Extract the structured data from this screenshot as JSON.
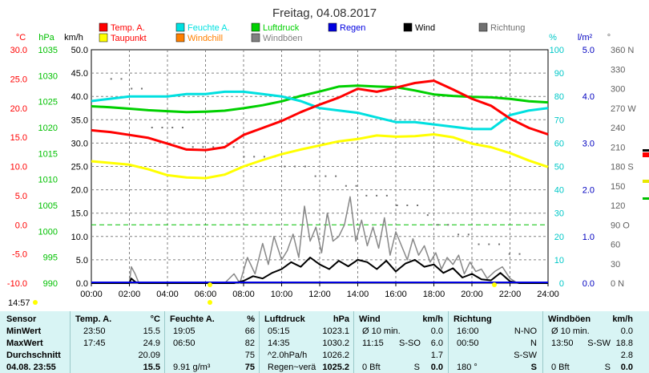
{
  "chart_data": {
    "type": "line",
    "title": "Freitag, 04.08.2017",
    "x_ticks": [
      "00:00",
      "02:00",
      "04:00",
      "06:00",
      "08:00",
      "10:00",
      "12:00",
      "14:00",
      "16:00",
      "18:00",
      "20:00",
      "22:00",
      "24:00"
    ],
    "xlim": [
      0,
      24
    ],
    "grid": true,
    "legend_position": "top",
    "axes": [
      {
        "unit": "°C",
        "color": "#ff0000",
        "ticks": [
          "30.0",
          "25.0",
          "20.0",
          "15.0",
          "10.0",
          "5.0",
          "0.0",
          "-5.0",
          "-10.0"
        ]
      },
      {
        "unit": "hPa",
        "color": "#00c000",
        "ticks": [
          "1035",
          "1030",
          "1025",
          "1020",
          "1015",
          "1010",
          "1005",
          "1000",
          "995",
          "990"
        ]
      },
      {
        "unit": "km/h",
        "color": "#000000",
        "ticks": [
          "50.0",
          "45.0",
          "40.0",
          "35.0",
          "30.0",
          "25.0",
          "20.0",
          "15.0",
          "10.0",
          "5.0",
          "0.0"
        ]
      },
      {
        "unit": "%",
        "color": "#00c8c8",
        "ticks": [
          "100",
          "90",
          "80",
          "70",
          "60",
          "50",
          "40",
          "30",
          "20",
          "10",
          "0"
        ]
      },
      {
        "unit": "l/m²",
        "color": "#0000c0",
        "ticks": [
          "5.0",
          "4.0",
          "3.0",
          "2.0",
          "1.0",
          "0.0"
        ]
      },
      {
        "unit": "°",
        "color": "#606060",
        "ticks": [
          "360 N",
          "330",
          "300",
          "270 W",
          "240",
          "210",
          "180 S",
          "150",
          "120",
          "90 O",
          "60",
          "30",
          "0 N"
        ]
      }
    ],
    "legend": [
      {
        "label": "Temp. A.",
        "color": "#ff0000"
      },
      {
        "label": "Feuchte A.",
        "color": "#00e0e0"
      },
      {
        "label": "Luftdruck",
        "color": "#00d000"
      },
      {
        "label": "Regen",
        "color": "#0000e0"
      },
      {
        "label": "Wind",
        "color": "#000000"
      },
      {
        "label": "Richtung",
        "color": "#707070"
      },
      {
        "label": "Taupunkt",
        "color": "#ffff00"
      },
      {
        "label": "Windchill",
        "color": "#ff8000"
      },
      {
        "label": "Windböen",
        "color": "#808080"
      }
    ],
    "series": [
      {
        "name": "Temp. A.",
        "axis": "°C",
        "color": "#ff0000",
        "width": 3,
        "x": [
          0,
          1,
          2,
          3,
          4,
          5,
          6,
          7,
          8,
          9,
          10,
          11,
          12,
          13,
          14,
          15,
          16,
          17,
          18,
          19,
          20,
          21,
          22,
          23,
          24
        ],
        "y": [
          16.2,
          15.9,
          15.4,
          14.9,
          13.9,
          12.9,
          12.8,
          13.3,
          15.4,
          16.6,
          17.8,
          19.3,
          20.6,
          21.8,
          23.3,
          22.8,
          23.5,
          24.3,
          24.7,
          23.2,
          21.6,
          20.4,
          18.2,
          16.6,
          15.5
        ]
      },
      {
        "name": "Feuchte A.",
        "axis": "%",
        "color": "#00e0e0",
        "width": 3,
        "x": [
          0,
          1,
          2,
          3,
          4,
          5,
          6,
          7,
          8,
          9,
          10,
          11,
          12,
          13,
          14,
          15,
          16,
          17,
          18,
          19,
          20,
          21,
          22,
          23,
          24
        ],
        "y": [
          78,
          79,
          80,
          80,
          80,
          81,
          81,
          82,
          82,
          81,
          80,
          78,
          75,
          74,
          73,
          71,
          69,
          69,
          68,
          67,
          66,
          66,
          72,
          74,
          75
        ]
      },
      {
        "name": "Luftdruck",
        "axis": "hPa",
        "color": "#00d000",
        "width": 3,
        "x": [
          0,
          1,
          2,
          3,
          4,
          5,
          6,
          7,
          8,
          9,
          10,
          11,
          12,
          13,
          14,
          15,
          16,
          17,
          18,
          19,
          20,
          21,
          22,
          23,
          24
        ],
        "y": [
          1026.0,
          1025.8,
          1025.5,
          1025.2,
          1025.0,
          1024.8,
          1024.9,
          1025.1,
          1025.6,
          1026.2,
          1027.0,
          1028.1,
          1029.0,
          1030.0,
          1030.2,
          1030.0,
          1029.9,
          1029.2,
          1028.4,
          1028.1,
          1027.9,
          1027.8,
          1027.5,
          1027.0,
          1026.8
        ]
      },
      {
        "name": "Taupunkt",
        "axis": "°C",
        "color": "#ffff00",
        "width": 3,
        "x": [
          0,
          1,
          2,
          3,
          4,
          5,
          6,
          7,
          8,
          9,
          10,
          11,
          12,
          13,
          14,
          15,
          16,
          17,
          18,
          19,
          20,
          21,
          22,
          23,
          24
        ],
        "y": [
          10.9,
          10.6,
          10.3,
          9.5,
          8.5,
          8.1,
          8.0,
          8.6,
          10.0,
          11.1,
          12.1,
          12.9,
          13.6,
          14.3,
          14.7,
          15.3,
          15.1,
          15.2,
          15.5,
          15.0,
          13.9,
          13.3,
          12.3,
          11.0,
          9.9
        ]
      },
      {
        "name": "Wind",
        "axis": "km/h",
        "color": "#000000",
        "width": 2,
        "x": [
          0,
          1,
          2,
          2.1,
          2.3,
          2.5,
          3,
          4,
          5,
          6,
          7,
          7.5,
          8,
          8.5,
          9,
          9.5,
          10,
          10.5,
          11,
          11.5,
          12,
          12.5,
          13,
          13.5,
          14,
          14.5,
          15,
          15.5,
          16,
          16.5,
          17,
          17.5,
          18,
          18.5,
          19,
          19.5,
          20,
          20.5,
          21,
          21.5,
          22,
          22.5,
          23,
          24
        ],
        "y": [
          0,
          0,
          0,
          1.0,
          0.3,
          0,
          0,
          0,
          0,
          0,
          0,
          0,
          0.5,
          1.5,
          1.0,
          2.2,
          3.0,
          4.5,
          3.5,
          5.5,
          4.0,
          3.0,
          4.8,
          3.6,
          5.0,
          4.5,
          3.0,
          4.8,
          2.5,
          4.2,
          5.0,
          3.5,
          4.0,
          2.2,
          3.2,
          1.2,
          2.0,
          0.8,
          0.6,
          2.2,
          0.4,
          0,
          0,
          0
        ]
      },
      {
        "name": "Windböen",
        "axis": "km/h",
        "color": "#888888",
        "width": 1.5,
        "x": [
          0,
          1,
          2,
          2.1,
          2.3,
          2.5,
          3,
          4,
          5,
          6,
          7,
          7.5,
          7.8,
          8.2,
          8.6,
          9,
          9.3,
          9.6,
          10,
          10.3,
          10.6,
          10.9,
          11.2,
          11.5,
          11.8,
          12.1,
          12.4,
          12.7,
          13,
          13.3,
          13.6,
          13.9,
          14.2,
          14.5,
          14.8,
          15.1,
          15.4,
          15.7,
          16,
          16.3,
          16.6,
          16.9,
          17.2,
          17.5,
          17.8,
          18.1,
          18.4,
          18.7,
          19,
          19.3,
          19.6,
          19.9,
          20.2,
          20.5,
          20.8,
          21.2,
          21.6,
          22,
          22.4,
          23,
          24
        ],
        "y": [
          0,
          0,
          0,
          3.5,
          2.0,
          0,
          0,
          0,
          0,
          0,
          0,
          2.0,
          0,
          5.5,
          2.0,
          8.5,
          4.0,
          10.0,
          5.0,
          7.0,
          10.5,
          5.5,
          16.5,
          9.0,
          12.0,
          6.5,
          15.0,
          9.0,
          10.0,
          12.5,
          18.5,
          9.0,
          13.5,
          8.0,
          12.0,
          7.5,
          14.0,
          6.0,
          11.0,
          8.0,
          5.0,
          9.5,
          6.0,
          8.0,
          4.5,
          6.5,
          3.0,
          5.5,
          4.0,
          6.0,
          2.0,
          4.5,
          2.5,
          3.0,
          1.0,
          2.5,
          3.5,
          1.0,
          0,
          0,
          0
        ]
      }
    ],
    "richtung_points": {
      "axis": "°",
      "color": "#707070",
      "y": [
        315,
        315,
        300,
        300,
        240,
        240,
        240,
        240,
        210,
        210,
        210,
        210,
        210,
        195,
        195,
        195,
        195,
        180,
        180,
        180,
        165,
        165,
        165,
        150,
        150,
        135,
        135,
        135,
        120,
        120,
        120,
        105,
        90,
        90,
        75,
        75,
        60,
        60,
        60,
        45,
        45
      ]
    }
  },
  "time_left": "14:57",
  "stats": {
    "headers": {
      "sensor": "Sensor",
      "temp": "Temp. A.",
      "temp_unit": "°C",
      "hum": "Feuchte A.",
      "hum_unit": "%",
      "press": "Luftdruck",
      "press_unit": "hPa",
      "wind": "Wind",
      "wind_unit": "km/h",
      "dir": "Richtung",
      "gust": "Windböen",
      "gust_unit": "km/h"
    },
    "rows": [
      {
        "label": "MinWert",
        "temp_time": "23:50",
        "temp_val": "15.5",
        "hum_time": "19:05",
        "hum_val": "66",
        "press_time": "05:15",
        "press_val": "1023.1",
        "wind_time": "Ø 10 min.",
        "wind_val": "0.0",
        "dir_time": "16:00",
        "dir_val": "N-NO",
        "gust_time": "Ø 10 min.",
        "gust_val": "0.0"
      },
      {
        "label": "MaxWert",
        "temp_time": "17:45",
        "temp_val": "24.9",
        "hum_time": "06:50",
        "hum_val": "82",
        "press_time": "14:35",
        "press_val": "1030.2",
        "wind_time": "11:15",
        "wind_dir": "S-SO",
        "wind_val": "6.0",
        "dir_time": "00:50",
        "dir_val": "N",
        "gust_time": "13:50",
        "gust_dir": "S-SW",
        "gust_val": "18.8"
      },
      {
        "label": "Durchschnitt",
        "temp_time": "",
        "temp_val": "20.09",
        "hum_time": "",
        "hum_val": "75",
        "press_time": "^2.0hPa/h",
        "press_val": "1026.2",
        "wind_time": "",
        "wind_val": "1.7",
        "dir_time": "",
        "dir_val": "S-SW",
        "gust_time": "",
        "gust_val": "2.8"
      },
      {
        "label": "04.08. 23:55",
        "temp_time": "",
        "temp_val": "15.5",
        "hum_time": "9.91 g/m³",
        "hum_val": "75",
        "press_time": "Regen~verä",
        "press_val": "1025.2",
        "wind_time": "0 Bft",
        "wind_dir": "S",
        "wind_val": "0.0",
        "dir_time": "180 °",
        "dir_val": "S",
        "gust_time": "0 Bft",
        "gust_dir": "S",
        "gust_val": "0.0"
      }
    ]
  }
}
